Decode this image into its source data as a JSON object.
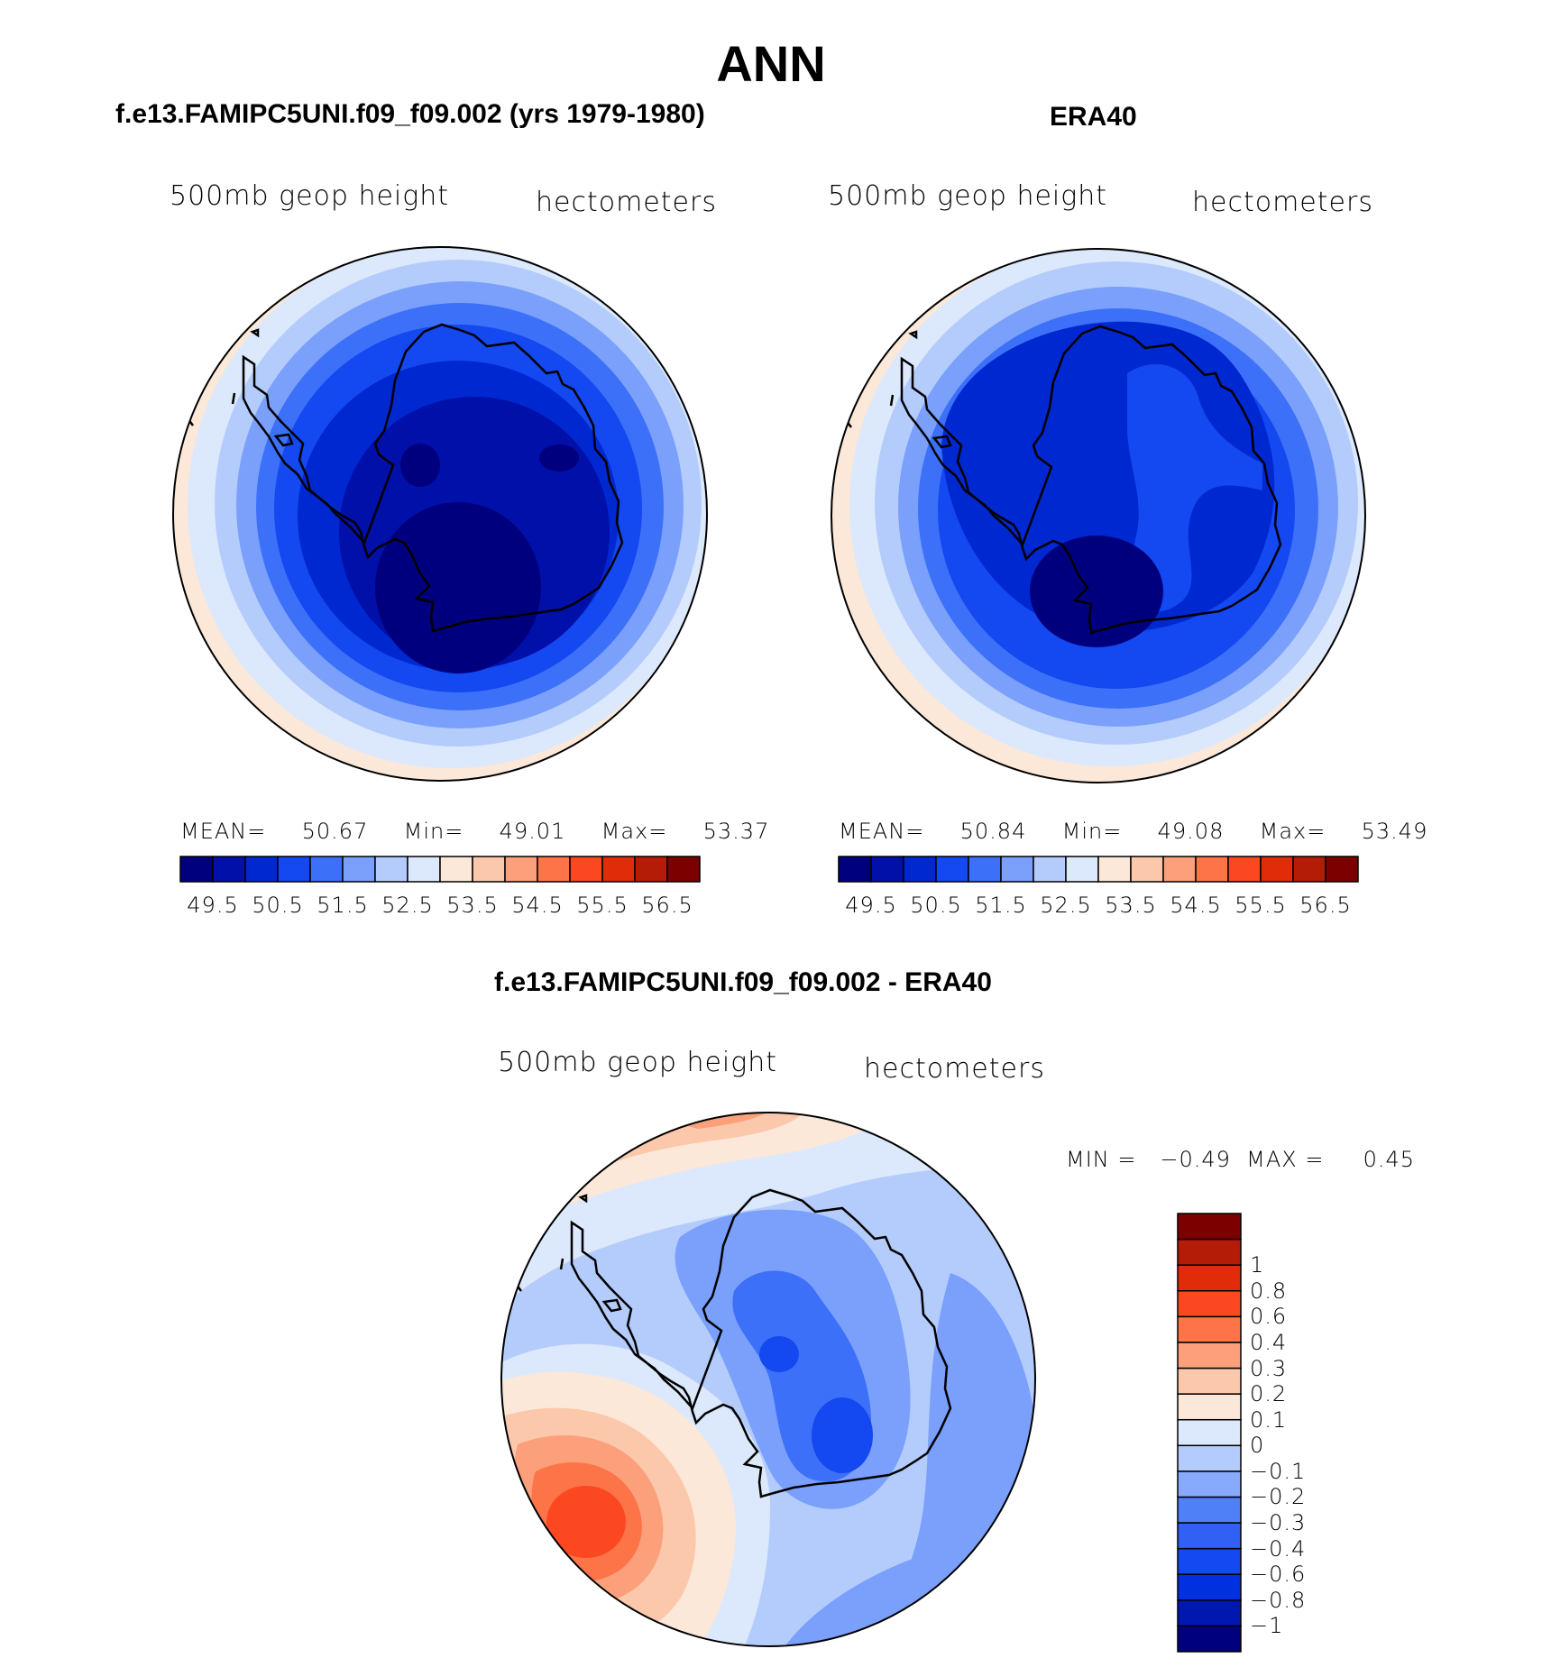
{
  "title": "ANN",
  "panels": [
    {
      "title": "f.e13.FAMIPC5UNI.f09_f09.002 (yrs 1979-1980)",
      "variable": "500mb geop height",
      "units": "hectometers",
      "stats": {
        "mean_label": "MEAN=",
        "mean": "50.67",
        "min_label": "Min=",
        "min": "49.01",
        "max_label": "Max=",
        "max": "53.37"
      }
    },
    {
      "title": "ERA40",
      "variable": "500mb geop height",
      "units": "hectometers",
      "stats": {
        "mean_label": "MEAN=",
        "mean": "50.84",
        "min_label": "Min=",
        "min": "49.08",
        "max_label": "Max=",
        "max": "53.49"
      }
    },
    {
      "title": "f.e13.FAMIPC5UNI.f09_f09.002 - ERA40",
      "variable": "500mb geop height",
      "units": "hectometers",
      "minmax": "MIN =   −0.49  MAX =     0.45"
    }
  ],
  "colorbar_abs": {
    "colors": [
      "#00007f",
      "#0010a8",
      "#0028d0",
      "#1448f0",
      "#3c70f8",
      "#7aa0fc",
      "#b4ccfc",
      "#dce8fc",
      "#fce8d8",
      "#fcc8ac",
      "#fca07c",
      "#fc7448",
      "#fc4820",
      "#e02c08",
      "#b41c08",
      "#7c0000"
    ],
    "ticks": [
      "49.5",
      "50.5",
      "51.5",
      "52.5",
      "53.5",
      "54.5",
      "55.5",
      "56.5"
    ]
  },
  "colorbar_diff": {
    "colors": [
      "#00007f",
      "#0018b0",
      "#0030e0",
      "#1448f0",
      "#3060f4",
      "#5080f8",
      "#88aafc",
      "#b4ccfc",
      "#dce8fc",
      "#fce8d8",
      "#fcc8ac",
      "#fca07c",
      "#fc7448",
      "#fc4820",
      "#e02c08",
      "#b41c08",
      "#7c0000"
    ],
    "labels": [
      "−1",
      "−0.8",
      "−0.6",
      "−0.4",
      "−0.3",
      "−0.2",
      "−0.1",
      "0",
      "0.1",
      "0.2",
      "0.3",
      "0.4",
      "0.6",
      "0.8",
      "1"
    ]
  }
}
